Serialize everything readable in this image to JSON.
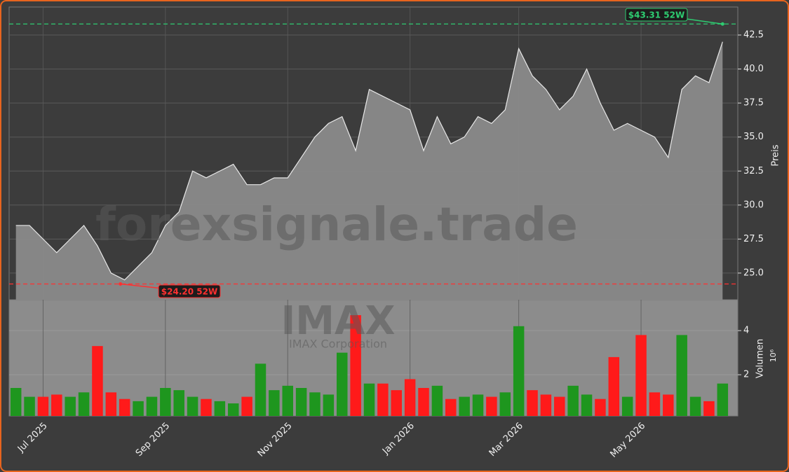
{
  "chart_data": {
    "type": "area",
    "title": "IMAX",
    "subtitle": "IMAX Corporation",
    "watermark": "forexsignale.trade",
    "categories": [
      null,
      null,
      "Jul 2025",
      null,
      null,
      null,
      null,
      null,
      null,
      null,
      null,
      "Sep 2025",
      null,
      null,
      null,
      null,
      null,
      null,
      null,
      null,
      "Nov 2025",
      null,
      null,
      null,
      null,
      null,
      null,
      null,
      null,
      "Jan 2026",
      null,
      null,
      null,
      null,
      null,
      null,
      null,
      "Mar 2026",
      null,
      null,
      null,
      null,
      null,
      null,
      null,
      null,
      "May 2026",
      null,
      null,
      null,
      null,
      null,
      null
    ],
    "series": [
      {
        "name": "Preis",
        "color": "#8a8a8a",
        "values": [
          28.5,
          28.5,
          27.5,
          26.5,
          27.5,
          28.5,
          27,
          25,
          24.5,
          25.5,
          26.5,
          28.5,
          29.5,
          32.5,
          32,
          32.5,
          33,
          31.5,
          31.5,
          32,
          32,
          33.5,
          35,
          36,
          36.5,
          34,
          38.5,
          38,
          37.5,
          37,
          34,
          36.5,
          34.5,
          35,
          36.5,
          36,
          37,
          41.5,
          39.5,
          38.5,
          37,
          38,
          40,
          37.5,
          35.5,
          36,
          35.5,
          35,
          33.5,
          38.5,
          39.5,
          39,
          42
        ]
      }
    ],
    "ylabel": "Preis",
    "ylim": [
      23.04,
      44.56
    ],
    "yticks": [
      {
        "value": 25,
        "label": "25.0"
      },
      27.5,
      {
        "value": 30,
        "label": "30.0"
      },
      32.5,
      {
        "value": 35,
        "label": "35.0"
      },
      37.5,
      {
        "value": 40,
        "label": "40.0"
      },
      42.5
    ],
    "high": {
      "value": 43.31,
      "label": "$43.31 52W",
      "color": "#2ecc71"
    },
    "low": {
      "value": 24.2,
      "label": "$24.20 52W",
      "color": "#ff3030"
    },
    "volume": {
      "type": "bar",
      "ylabel": "Volumen",
      "scale_label": "10⁶",
      "up_color": "#1e961e",
      "down_color": "#ff1a1a",
      "values": [
        1.4,
        1.0,
        1.0,
        1.1,
        1.0,
        1.2,
        3.3,
        1.2,
        0.9,
        0.8,
        1.0,
        1.4,
        1.3,
        1.0,
        0.9,
        0.8,
        0.7,
        1.0,
        2.5,
        1.3,
        1.5,
        1.4,
        1.2,
        1.1,
        3.0,
        4.7,
        1.6,
        1.6,
        1.3,
        1.8,
        1.4,
        1.5,
        0.9,
        1.0,
        1.1,
        1.0,
        1.2,
        4.2,
        1.3,
        1.1,
        1.0,
        1.5,
        1.1,
        0.9,
        2.8,
        1.0,
        3.8,
        1.2,
        1.1,
        3.8,
        1.0,
        0.8,
        1.6
      ],
      "ylim": [
        0.13,
        5.4
      ],
      "yticks": [
        2,
        4
      ]
    },
    "grid": true
  }
}
